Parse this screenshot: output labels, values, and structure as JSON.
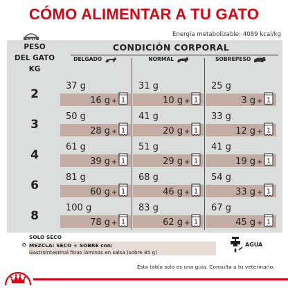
{
  "title": "CÓMO ALIMENTAR A TU GATO",
  "clock_label": "24H",
  "energy": "Energía metabolizable: 4089 kcal/kg",
  "header_left": [
    "PESO",
    "DEL GATO",
    "KG"
  ],
  "condition_title": "CONDICIÓN CORPORAL",
  "columns": [
    "DELGADO",
    "NORMAL",
    "SOBREPESO"
  ],
  "rows": [
    {
      "weight": "2",
      "cells": [
        {
          "dry": "37 g",
          "wet": "16 g",
          "pouch": "1"
        },
        {
          "dry": "31 g",
          "wet": "10 g",
          "pouch": "1"
        },
        {
          "dry": "25 g",
          "wet": "3 g",
          "pouch": "1"
        }
      ]
    },
    {
      "weight": "3",
      "cells": [
        {
          "dry": "50 g",
          "wet": "28 g",
          "pouch": "1"
        },
        {
          "dry": "41 g",
          "wet": "20 g",
          "pouch": "1"
        },
        {
          "dry": "33 g",
          "wet": "12 g",
          "pouch": "1"
        }
      ]
    },
    {
      "weight": "4",
      "cells": [
        {
          "dry": "61 g",
          "wet": "39 g",
          "pouch": "1"
        },
        {
          "dry": "51 g",
          "wet": "29 g",
          "pouch": "1"
        },
        {
          "dry": "41 g",
          "wet": "19 g",
          "pouch": "1"
        }
      ]
    },
    {
      "weight": "6",
      "cells": [
        {
          "dry": "81 g",
          "wet": "60 g",
          "pouch": "1"
        },
        {
          "dry": "68 g",
          "wet": "46 g",
          "pouch": "1"
        },
        {
          "dry": "54 g",
          "wet": "33 g",
          "pouch": "1"
        }
      ]
    },
    {
      "weight": "8",
      "cells": [
        {
          "dry": "100 g",
          "wet": "78 g",
          "pouch": "1"
        },
        {
          "dry": "83 g",
          "wet": "62 g",
          "pouch": "1"
        },
        {
          "dry": "67 g",
          "wet": "45 g",
          "pouch": "1"
        }
      ]
    }
  ],
  "plus": "+",
  "legend": {
    "solo": "SOLO SECO",
    "o": "O",
    "mezcla_1": "MEZCLA: SECO + SOBRE con:",
    "mezcla_2": "Gastrointestinal finas láminas en salsa (sobre 85 g)",
    "agua": "AGUA"
  },
  "footer": "Esta tabla solo es una guía. Consulta a tu veterinario.",
  "colors": {
    "brand_red": "#e1000f",
    "panel": "#dcdedd",
    "band": "#c2aca3"
  }
}
